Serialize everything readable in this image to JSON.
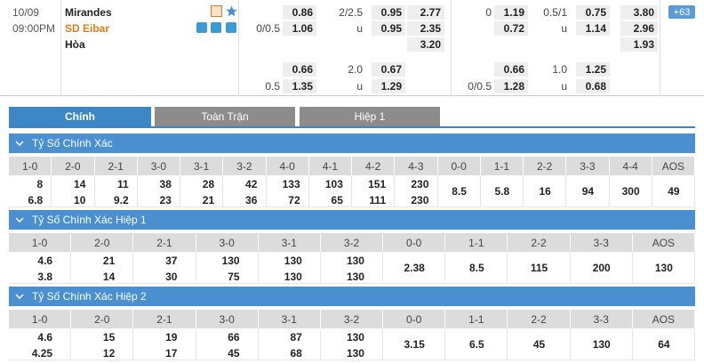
{
  "match": {
    "date": "10/09",
    "time": "09:00PM",
    "home": "Mirandes",
    "away": "SD Eibar",
    "draw": "Hòa",
    "more": "+63",
    "odds": [
      {
        "rows": [
          {
            "h": "0.86",
            "ou_line": "2/2.5",
            "ou": "0.95",
            "x": "2.77"
          },
          {
            "h_line": "0/0.5",
            "h": "1.06",
            "ou_line": "u",
            "ou": "0.95",
            "x": "2.35"
          },
          {
            "x": "3.20"
          },
          {
            "h": "0.66",
            "ou_line": "2.0",
            "ou": "0.67"
          },
          {
            "h_line": "0.5",
            "h": "1.35",
            "ou_line": "u",
            "ou": "1.29"
          }
        ]
      },
      {
        "rows": [
          {
            "h_line": "0",
            "h": "1.19",
            "ou_line": "0.5/1",
            "ou": "0.75",
            "x": "3.80"
          },
          {
            "h": "0.72",
            "ou_line": "u",
            "ou": "1.14",
            "x": "2.96"
          },
          {
            "x": "1.93"
          },
          {
            "h": "0.66",
            "ou_line": "1.0",
            "ou": "1.25"
          },
          {
            "h_line": "0/0.5",
            "h": "1.28",
            "ou_line": "u",
            "ou": "0.68"
          }
        ]
      }
    ]
  },
  "tabs": [
    "Chính",
    "Toàn Trận",
    "Hiệp 1"
  ],
  "sections": [
    {
      "title": "Tỷ Số Chính Xác",
      "headers": [
        "1-0",
        "2-0",
        "2-1",
        "3-0",
        "3-1",
        "3-2",
        "4-0",
        "4-1",
        "4-2",
        "4-3",
        "0-0",
        "1-1",
        "2-2",
        "3-3",
        "4-4",
        "AOS"
      ],
      "cells": [
        [
          "8",
          "6.8"
        ],
        [
          "14",
          "10"
        ],
        [
          "11",
          "9.2"
        ],
        [
          "38",
          "23"
        ],
        [
          "28",
          "21"
        ],
        [
          "42",
          "36"
        ],
        [
          "133",
          "72"
        ],
        [
          "103",
          "65"
        ],
        [
          "151",
          "111"
        ],
        [
          "230",
          "230"
        ],
        [
          "8.5"
        ],
        [
          "5.8"
        ],
        [
          "16"
        ],
        [
          "94"
        ],
        [
          "300"
        ],
        [
          "49"
        ]
      ]
    },
    {
      "title": "Tỷ Số Chính Xác Hiệp 1",
      "headers": [
        "1-0",
        "2-0",
        "2-1",
        "3-0",
        "3-1",
        "3-2",
        "0-0",
        "1-1",
        "2-2",
        "3-3",
        "AOS"
      ],
      "cells": [
        [
          "4.6",
          "3.8"
        ],
        [
          "21",
          "14"
        ],
        [
          "37",
          "30"
        ],
        [
          "130",
          "75"
        ],
        [
          "130",
          "130"
        ],
        [
          "130",
          "130"
        ],
        [
          "2.38"
        ],
        [
          "8.5"
        ],
        [
          "115"
        ],
        [
          "200"
        ],
        [
          "130"
        ]
      ]
    },
    {
      "title": "Tỷ Số Chính Xác Hiệp 2",
      "headers": [
        "1-0",
        "2-0",
        "2-1",
        "3-0",
        "3-1",
        "3-2",
        "0-0",
        "1-1",
        "2-2",
        "3-3",
        "AOS"
      ],
      "cells": [
        [
          "4.6",
          "4.25"
        ],
        [
          "15",
          "12"
        ],
        [
          "19",
          "17"
        ],
        [
          "66",
          "45"
        ],
        [
          "87",
          "68"
        ],
        [
          "130",
          "130"
        ],
        [
          "3.15"
        ],
        [
          "6.5"
        ],
        [
          "45"
        ],
        [
          "130"
        ],
        [
          "64"
        ]
      ]
    }
  ]
}
